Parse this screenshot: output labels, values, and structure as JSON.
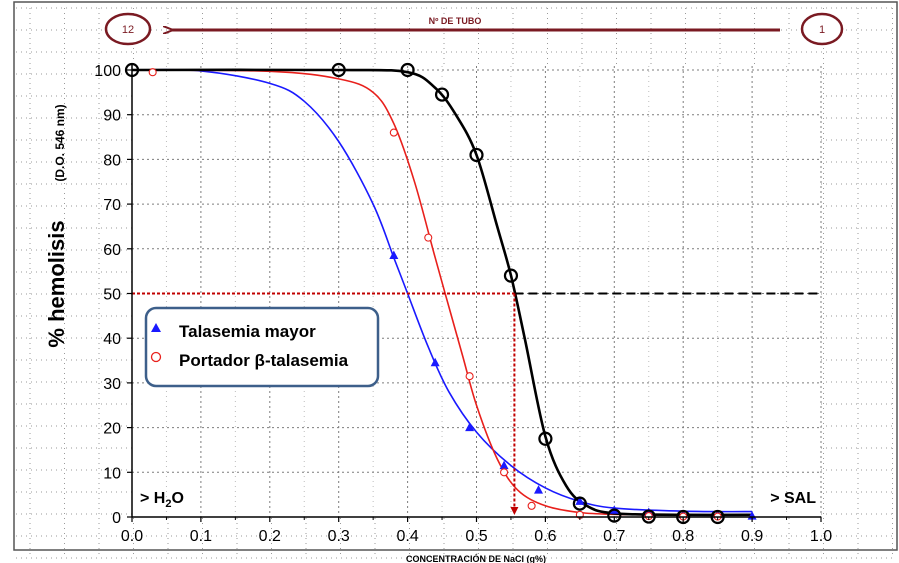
{
  "chart_data": {
    "type": "scatter",
    "title": "",
    "xlabel": "CONCENTRACIÓN DE NaCl (g%)",
    "ylabel_main": "% hemolisis",
    "ylabel_sub": "(D.O. 546 nm)",
    "xlim": [
      0.0,
      1.0
    ],
    "ylim": [
      0,
      100
    ],
    "x_ticks": [
      "0.0",
      "0.1",
      "0.2",
      "0.3",
      "0.4",
      "0.5",
      "0.6",
      "0.7",
      "0.8",
      "0.9",
      "1.0"
    ],
    "y_ticks": [
      "0",
      "10",
      "20",
      "30",
      "40",
      "50",
      "60",
      "70",
      "80",
      "90",
      "100"
    ],
    "grid": true,
    "legend_position": "center-left",
    "tube_axis": {
      "label": "Nº DE TUBO",
      "start": "12",
      "end": "1"
    },
    "left_annotation": {
      "prefix": "> H",
      "sub": "2",
      "suffix": "O"
    },
    "right_annotation": "> SAL",
    "reference_line_y": 50,
    "series": [
      {
        "name": "Talasemia mayor",
        "marker": "triangle",
        "color": "#1a1aff",
        "points": [
          [
            0.38,
            58.5
          ],
          [
            0.44,
            34.5
          ],
          [
            0.49,
            20
          ],
          [
            0.54,
            11.5
          ],
          [
            0.59,
            6
          ],
          [
            0.65,
            3.5
          ],
          [
            0.7,
            1.5
          ],
          [
            0.75,
            1
          ],
          [
            0.8,
            0.5
          ],
          [
            0.85,
            0.5
          ],
          [
            0.9,
            0.2
          ]
        ],
        "curve": [
          [
            0.0,
            100
          ],
          [
            0.1,
            99.8
          ],
          [
            0.2,
            97
          ],
          [
            0.25,
            93
          ],
          [
            0.3,
            84
          ],
          [
            0.35,
            70
          ],
          [
            0.38,
            58
          ],
          [
            0.4,
            50
          ],
          [
            0.43,
            38
          ],
          [
            0.46,
            28
          ],
          [
            0.5,
            19
          ],
          [
            0.55,
            11.5
          ],
          [
            0.6,
            6.5
          ],
          [
            0.65,
            3.5
          ],
          [
            0.7,
            2
          ],
          [
            0.8,
            1.3
          ],
          [
            0.9,
            1.2
          ]
        ],
        "half_point": 0.4
      },
      {
        "name": "Portador β-talasemia",
        "marker": "circle-open",
        "color": "#e8201c",
        "points": [
          [
            0.03,
            99.5
          ],
          [
            0.38,
            86
          ],
          [
            0.43,
            62.5
          ],
          [
            0.49,
            31.5
          ],
          [
            0.54,
            10
          ],
          [
            0.58,
            2.5
          ],
          [
            0.65,
            0.5
          ],
          [
            0.75,
            0.2
          ],
          [
            0.8,
            0.1
          ],
          [
            0.85,
            0.1
          ]
        ],
        "curve": [
          [
            0.0,
            100
          ],
          [
            0.2,
            99.7
          ],
          [
            0.3,
            98
          ],
          [
            0.35,
            95
          ],
          [
            0.38,
            88
          ],
          [
            0.41,
            75
          ],
          [
            0.44,
            58
          ],
          [
            0.46,
            47
          ],
          [
            0.48,
            36
          ],
          [
            0.5,
            25
          ],
          [
            0.53,
            13
          ],
          [
            0.56,
            6
          ],
          [
            0.6,
            2.5
          ],
          [
            0.65,
            1
          ],
          [
            0.7,
            0.6
          ],
          [
            0.8,
            0.4
          ]
        ],
        "half_point": 0.46
      },
      {
        "name": "",
        "marker": "circle-open",
        "color": "#000000",
        "points": [
          [
            0.0,
            100
          ],
          [
            0.3,
            100
          ],
          [
            0.4,
            100
          ],
          [
            0.45,
            94.5
          ],
          [
            0.5,
            81
          ],
          [
            0.55,
            54
          ],
          [
            0.6,
            17.5
          ],
          [
            0.65,
            3
          ],
          [
            0.7,
            0.3
          ],
          [
            0.75,
            0.1
          ],
          [
            0.8,
            0
          ],
          [
            0.85,
            0
          ]
        ],
        "curve": [
          [
            0.0,
            100
          ],
          [
            0.3,
            100
          ],
          [
            0.4,
            99.5
          ],
          [
            0.44,
            96
          ],
          [
            0.47,
            90
          ],
          [
            0.5,
            81
          ],
          [
            0.53,
            65
          ],
          [
            0.55,
            54
          ],
          [
            0.57,
            40
          ],
          [
            0.6,
            18
          ],
          [
            0.63,
            7
          ],
          [
            0.66,
            2.5
          ],
          [
            0.7,
            0.8
          ],
          [
            0.8,
            0.5
          ],
          [
            0.9,
            0.5
          ]
        ],
        "half_point": 0.555
      }
    ]
  }
}
